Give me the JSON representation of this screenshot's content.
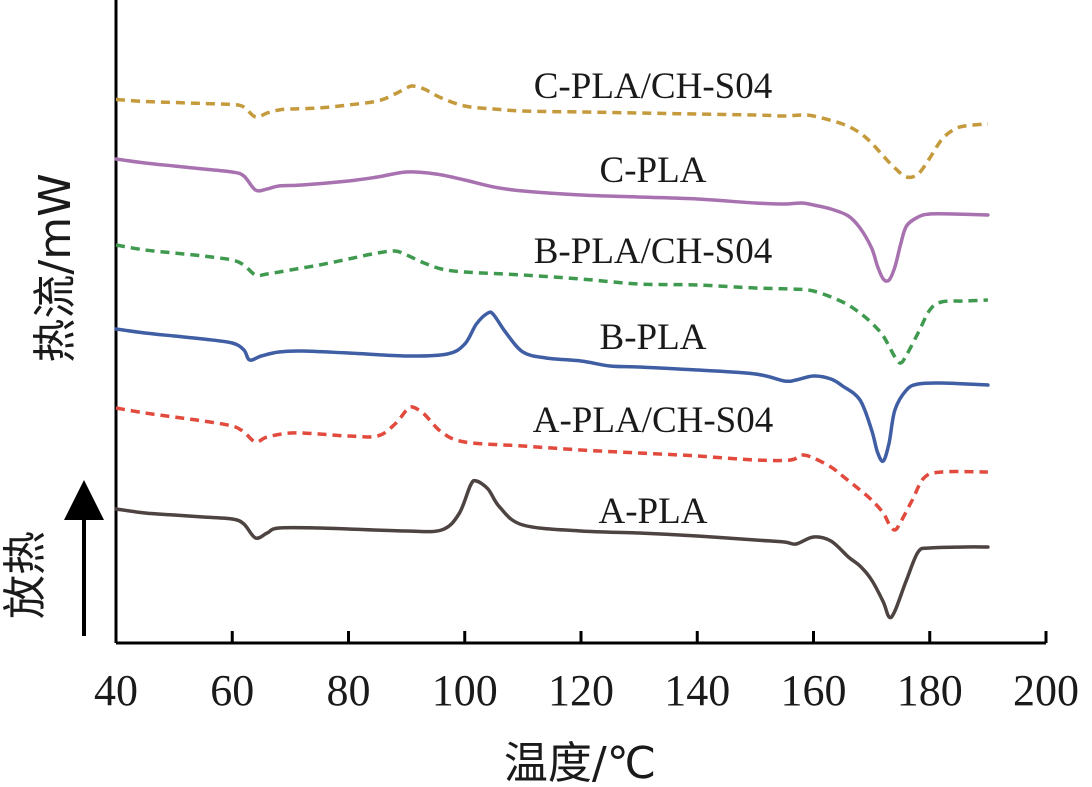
{
  "chart_data": {
    "type": "line",
    "xlabel": "温度/℃",
    "ylabel": "热流/mW",
    "exo_label": "放热",
    "xlim": [
      40,
      200
    ],
    "xticks": [
      40,
      60,
      80,
      100,
      120,
      140,
      160,
      180,
      200
    ],
    "y_tick_labels": false,
    "grid": false,
    "series": [
      {
        "name": "C-PLA/CH-S04",
        "color": "#c49a3c",
        "dash": true,
        "points": [
          [
            40,
            99.5
          ],
          [
            45,
            101.5
          ],
          [
            50,
            102.5
          ],
          [
            55,
            103.5
          ],
          [
            60,
            104.5
          ],
          [
            62,
            107
          ],
          [
            64,
            117
          ],
          [
            66,
            113
          ],
          [
            68,
            110
          ],
          [
            70,
            109
          ],
          [
            75,
            108
          ],
          [
            80,
            105
          ],
          [
            85,
            101
          ],
          [
            88,
            94
          ],
          [
            90,
            88
          ],
          [
            91,
            86
          ],
          [
            93,
            89
          ],
          [
            96,
            98
          ],
          [
            100,
            106
          ],
          [
            105,
            109
          ],
          [
            110,
            111
          ],
          [
            120,
            112
          ],
          [
            130,
            113
          ],
          [
            140,
            114
          ],
          [
            150,
            115
          ],
          [
            155,
            116
          ],
          [
            158,
            115
          ],
          [
            160,
            116
          ],
          [
            165,
            124
          ],
          [
            168,
            133
          ],
          [
            170,
            143
          ],
          [
            172,
            156
          ],
          [
            174,
            168
          ],
          [
            176,
            177
          ],
          [
            178,
            174
          ],
          [
            180,
            158
          ],
          [
            182,
            140
          ],
          [
            184,
            130
          ],
          [
            186,
            126
          ],
          [
            190,
            124
          ]
        ]
      },
      {
        "name": "C-PLA",
        "color": "#a872b0",
        "dash": false,
        "points": [
          [
            40,
            159
          ],
          [
            45,
            163
          ],
          [
            50,
            166
          ],
          [
            55,
            169
          ],
          [
            60,
            172
          ],
          [
            62,
            176
          ],
          [
            64,
            190
          ],
          [
            66,
            189
          ],
          [
            68,
            186
          ],
          [
            72,
            185
          ],
          [
            80,
            181
          ],
          [
            85,
            177
          ],
          [
            90,
            172
          ],
          [
            95,
            174
          ],
          [
            100,
            180
          ],
          [
            105,
            187
          ],
          [
            110,
            191
          ],
          [
            120,
            195
          ],
          [
            130,
            197
          ],
          [
            140,
            199
          ],
          [
            150,
            203
          ],
          [
            155,
            204
          ],
          [
            158,
            203
          ],
          [
            160,
            205
          ],
          [
            163,
            209
          ],
          [
            166,
            216
          ],
          [
            168,
            228
          ],
          [
            170,
            248
          ],
          [
            171,
            266
          ],
          [
            172,
            279
          ],
          [
            173,
            280
          ],
          [
            174,
            267
          ],
          [
            175,
            244
          ],
          [
            176,
            226
          ],
          [
            178,
            217
          ],
          [
            180,
            214
          ],
          [
            184,
            214
          ],
          [
            190,
            215
          ]
        ]
      },
      {
        "name": "B-PLA/CH-S04",
        "color": "#3f9a4f",
        "dash": true,
        "points": [
          [
            40,
            245
          ],
          [
            45,
            250
          ],
          [
            50,
            253
          ],
          [
            55,
            256
          ],
          [
            60,
            260
          ],
          [
            62,
            265
          ],
          [
            64,
            275
          ],
          [
            66,
            274
          ],
          [
            70,
            270
          ],
          [
            75,
            265
          ],
          [
            80,
            259
          ],
          [
            85,
            253
          ],
          [
            88,
            251
          ],
          [
            90,
            255
          ],
          [
            93,
            263
          ],
          [
            96,
            269
          ],
          [
            100,
            272
          ],
          [
            110,
            275
          ],
          [
            120,
            279
          ],
          [
            130,
            284
          ],
          [
            140,
            285
          ],
          [
            150,
            288
          ],
          [
            156,
            289
          ],
          [
            160,
            291
          ],
          [
            165,
            302
          ],
          [
            168,
            313
          ],
          [
            170,
            323
          ],
          [
            172,
            336
          ],
          [
            174,
            357
          ],
          [
            175,
            363
          ],
          [
            176,
            355
          ],
          [
            178,
            333
          ],
          [
            180,
            310
          ],
          [
            182,
            302
          ],
          [
            186,
            301
          ],
          [
            190,
            300
          ]
        ]
      },
      {
        "name": "B-PLA",
        "color": "#3f5ea3",
        "dash": false,
        "points": [
          [
            40,
            329
          ],
          [
            45,
            333
          ],
          [
            50,
            336
          ],
          [
            55,
            339
          ],
          [
            60,
            343
          ],
          [
            62,
            350
          ],
          [
            63,
            360
          ],
          [
            65,
            356
          ],
          [
            68,
            352
          ],
          [
            72,
            351
          ],
          [
            80,
            353
          ],
          [
            90,
            356
          ],
          [
            97,
            354
          ],
          [
            100,
            344
          ],
          [
            102,
            324
          ],
          [
            104,
            313
          ],
          [
            105,
            315
          ],
          [
            107,
            332
          ],
          [
            110,
            352
          ],
          [
            114,
            358
          ],
          [
            120,
            361
          ],
          [
            125,
            366
          ],
          [
            130,
            367
          ],
          [
            140,
            370
          ],
          [
            150,
            374
          ],
          [
            155,
            381
          ],
          [
            157,
            380
          ],
          [
            160,
            376
          ],
          [
            163,
            379
          ],
          [
            165,
            386
          ],
          [
            168,
            400
          ],
          [
            170,
            430
          ],
          [
            171,
            452
          ],
          [
            172,
            461
          ],
          [
            173,
            443
          ],
          [
            174,
            410
          ],
          [
            176,
            390
          ],
          [
            178,
            384
          ],
          [
            182,
            383
          ],
          [
            190,
            385
          ]
        ]
      },
      {
        "name": "A-PLA/CH-S04",
        "color": "#e14a3c",
        "dash": true,
        "points": [
          [
            40,
            408
          ],
          [
            45,
            413
          ],
          [
            50,
            417
          ],
          [
            55,
            421
          ],
          [
            60,
            426
          ],
          [
            62,
            432
          ],
          [
            64,
            442
          ],
          [
            66,
            437
          ],
          [
            70,
            433
          ],
          [
            75,
            434
          ],
          [
            80,
            436
          ],
          [
            85,
            436
          ],
          [
            88,
            424
          ],
          [
            90,
            410
          ],
          [
            91,
            407
          ],
          [
            93,
            414
          ],
          [
            96,
            432
          ],
          [
            100,
            442
          ],
          [
            110,
            446
          ],
          [
            120,
            450
          ],
          [
            130,
            453
          ],
          [
            140,
            456
          ],
          [
            150,
            460
          ],
          [
            156,
            460
          ],
          [
            158,
            455
          ],
          [
            160,
            458
          ],
          [
            163,
            467
          ],
          [
            165,
            476
          ],
          [
            168,
            490
          ],
          [
            170,
            500
          ],
          [
            172,
            513
          ],
          [
            173,
            524
          ],
          [
            174,
            530
          ],
          [
            175,
            522
          ],
          [
            177,
            500
          ],
          [
            179,
            478
          ],
          [
            182,
            472
          ],
          [
            190,
            472
          ]
        ]
      },
      {
        "name": "A-PLA",
        "color": "#4d4340",
        "dash": false,
        "points": [
          [
            40,
            509
          ],
          [
            45,
            513
          ],
          [
            50,
            515
          ],
          [
            55,
            517
          ],
          [
            60,
            519
          ],
          [
            62,
            524
          ],
          [
            64,
            538
          ],
          [
            66,
            533
          ],
          [
            68,
            528
          ],
          [
            75,
            528
          ],
          [
            80,
            529
          ],
          [
            90,
            531
          ],
          [
            96,
            530
          ],
          [
            99,
            514
          ],
          [
            101,
            485
          ],
          [
            102,
            481
          ],
          [
            104,
            489
          ],
          [
            106,
            507
          ],
          [
            110,
            525
          ],
          [
            120,
            531
          ],
          [
            130,
            533
          ],
          [
            140,
            536
          ],
          [
            150,
            540
          ],
          [
            155,
            542
          ],
          [
            157,
            544
          ],
          [
            160,
            537
          ],
          [
            163,
            541
          ],
          [
            166,
            557
          ],
          [
            168,
            566
          ],
          [
            170,
            580
          ],
          [
            172,
            602
          ],
          [
            173,
            617
          ],
          [
            174,
            611
          ],
          [
            176,
            580
          ],
          [
            178,
            552
          ],
          [
            180,
            548
          ],
          [
            186,
            547
          ],
          [
            190,
            547
          ]
        ]
      }
    ]
  }
}
